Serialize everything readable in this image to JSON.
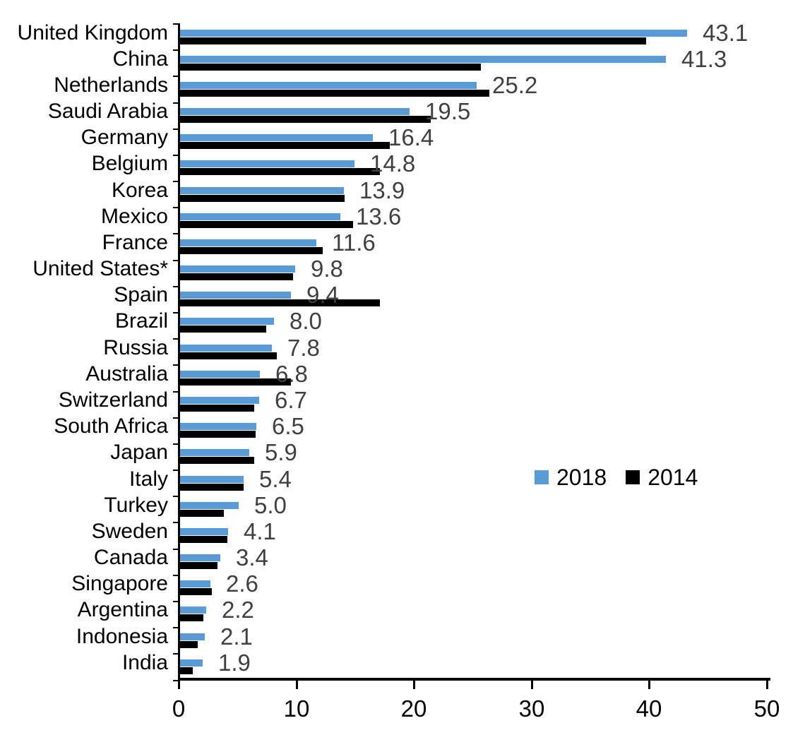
{
  "chart_data": {
    "type": "bar",
    "orientation": "horizontal",
    "title": "",
    "xlabel": "",
    "ylabel": "",
    "xlim": [
      0,
      50
    ],
    "xtick_labels": [
      "0",
      "10",
      "20",
      "30",
      "40",
      "50"
    ],
    "xtick_values": [
      0,
      10,
      20,
      30,
      40,
      50
    ],
    "grid": false,
    "legend_position": "middle-right",
    "categories": [
      "United Kingdom",
      "China",
      "Netherlands",
      "Saudi Arabia",
      "Germany",
      "Belgium",
      "Korea",
      "Mexico",
      "France",
      "United States*",
      "Spain",
      "Brazil",
      "Russia",
      "Australia",
      "Switzerland",
      "South Africa",
      "Japan",
      "Italy",
      "Turkey",
      "Sweden",
      "Canada",
      "Singapore",
      "Argentina",
      "Indonesia",
      "India"
    ],
    "series": [
      {
        "name": "2018",
        "color": "#5B9BD5",
        "values": [
          43.1,
          41.3,
          25.2,
          19.5,
          16.4,
          14.8,
          13.9,
          13.6,
          11.6,
          9.8,
          9.4,
          8.0,
          7.8,
          6.8,
          6.7,
          6.5,
          5.9,
          5.4,
          5.0,
          4.1,
          3.4,
          2.6,
          2.2,
          2.1,
          1.9
        ]
      },
      {
        "name": "2014",
        "color": "#000000",
        "values": [
          39.6,
          25.6,
          26.3,
          21.3,
          17.8,
          17.0,
          14.0,
          14.7,
          12.1,
          9.6,
          17.0,
          7.3,
          8.2,
          9.4,
          6.3,
          6.4,
          6.3,
          5.4,
          3.7,
          4.0,
          3.2,
          2.7,
          2.0,
          1.5,
          1.1
        ]
      }
    ],
    "value_labels": [
      "43.1",
      "41.3",
      "25.2",
      "19.5",
      "16.4",
      "14.8",
      "13.9",
      "13.6",
      "11.6",
      "9.8",
      "9.4",
      "8.0",
      "7.8",
      "6.8",
      "6.7",
      "6.5",
      "5.9",
      "5.4",
      "5.0",
      "4.1",
      "3.4",
      "2.6",
      "2.2",
      "2.1",
      "1.9"
    ],
    "value_labels_series": "2018"
  },
  "colors": {
    "series_2018": "#5B9BD5",
    "series_2014": "#000000",
    "value_label_text": "#404040",
    "axis": "#000000",
    "background": "#FFFFFF"
  },
  "legend": {
    "items": [
      {
        "label": "2018",
        "color": "#5B9BD5"
      },
      {
        "label": "2014",
        "color": "#000000"
      }
    ]
  }
}
